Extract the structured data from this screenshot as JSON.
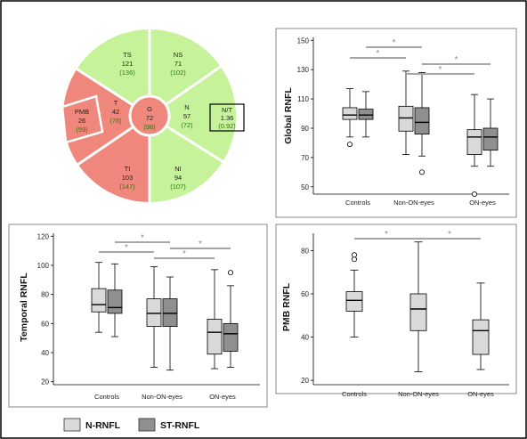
{
  "colors": {
    "n_rnfl": "#d9d9d9",
    "st_rnfl": "#8f8f8f",
    "sector_green": "#c6f29a",
    "sector_red": "#f0877c",
    "significance": "#a6a6a6"
  },
  "legend": [
    {
      "label": "N-RNFL",
      "color": "#d9d9d9"
    },
    {
      "label": "ST-RNFL",
      "color": "#8f8f8f"
    }
  ],
  "sector_diagram": {
    "sectors": [
      {
        "code": "TS",
        "value": "121",
        "ref": "(136)",
        "status": "normal"
      },
      {
        "code": "NS",
        "value": "71",
        "ref": "(102)",
        "status": "normal"
      },
      {
        "code": "T",
        "value": "42",
        "ref": "(76)",
        "status": "abnormal"
      },
      {
        "code": "PMB",
        "value": "26",
        "ref": "(59)",
        "status": "abnormal"
      },
      {
        "code": "G",
        "value": "72",
        "ref": "(98)",
        "status": "abnormal"
      },
      {
        "code": "N",
        "value": "57",
        "ref": "(72)",
        "status": "normal"
      },
      {
        "code": "N/T",
        "value": "1.36",
        "ref": "(0.92)",
        "status": "normal"
      },
      {
        "code": "TI",
        "value": "103",
        "ref": "(147)",
        "status": "abnormal"
      },
      {
        "code": "NI",
        "value": "94",
        "ref": "(107)",
        "status": "normal"
      }
    ]
  },
  "chart_data": [
    {
      "type": "box",
      "title": "",
      "xlabel": "",
      "ylabel": "Global RNFL",
      "ylim": [
        45,
        152
      ],
      "yticks": [
        "50",
        "70",
        "90",
        "110",
        "130",
        "150"
      ],
      "categories": [
        "Controls",
        "Non-ON-eyes",
        "ON-eyes"
      ],
      "series": [
        {
          "name": "N-RNFL",
          "boxes": [
            {
              "min": 84,
              "q1": 96,
              "median": 99,
              "q3": 104,
              "max": 117,
              "outliers": [
                79
              ]
            },
            {
              "min": 72,
              "q1": 88,
              "median": 97,
              "q3": 105,
              "max": 129,
              "outliers": []
            },
            {
              "min": 64,
              "q1": 72,
              "median": 84,
              "q3": 89,
              "max": 113,
              "outliers": [
                45
              ]
            }
          ]
        },
        {
          "name": "ST-RNFL",
          "boxes": [
            {
              "min": 84,
              "q1": 96,
              "median": 99,
              "q3": 103,
              "max": 115,
              "outliers": []
            },
            {
              "min": 71,
              "q1": 86,
              "median": 94,
              "q3": 104,
              "max": 128,
              "outliers": [
                60
              ]
            },
            {
              "min": 64,
              "q1": 75,
              "median": 84,
              "q3": 90,
              "max": 110,
              "outliers": []
            }
          ]
        }
      ],
      "significance": [
        {
          "label": "*",
          "from": 0,
          "to": 1,
          "series": "N-RNFL"
        },
        {
          "label": "*",
          "from": 0,
          "to": 1,
          "series": "ST-RNFL"
        },
        {
          "label": "*",
          "from": 1,
          "to": 2,
          "series": "N-RNFL"
        },
        {
          "label": "*",
          "from": 1,
          "to": 2,
          "series": "ST-RNFL"
        }
      ]
    },
    {
      "type": "box",
      "title": "",
      "xlabel": "",
      "ylabel": "Temporal RNFL",
      "ylim": [
        18,
        122
      ],
      "yticks": [
        "20",
        "40",
        "60",
        "80",
        "100",
        "120"
      ],
      "categories": [
        "Controls",
        "Non-ON-eyes",
        "ON-eyes"
      ],
      "series": [
        {
          "name": "N-RNFL",
          "boxes": [
            {
              "min": 54,
              "q1": 68,
              "median": 73,
              "q3": 84,
              "max": 102,
              "outliers": []
            },
            {
              "min": 30,
              "q1": 58,
              "median": 67,
              "q3": 77,
              "max": 99,
              "outliers": []
            },
            {
              "min": 29,
              "q1": 39,
              "median": 54,
              "q3": 63,
              "max": 97,
              "outliers": []
            }
          ]
        },
        {
          "name": "ST-RNFL",
          "boxes": [
            {
              "min": 51,
              "q1": 67,
              "median": 71,
              "q3": 83,
              "max": 101,
              "outliers": []
            },
            {
              "min": 28,
              "q1": 58,
              "median": 67,
              "q3": 77,
              "max": 92,
              "outliers": []
            },
            {
              "min": 30,
              "q1": 41,
              "median": 53,
              "q3": 60,
              "max": 86,
              "outliers": [
                95
              ]
            }
          ]
        }
      ],
      "significance": [
        {
          "label": "*",
          "from": 0,
          "to": 1,
          "series": "N-RNFL"
        },
        {
          "label": "*",
          "from": 0,
          "to": 1,
          "series": "ST-RNFL"
        },
        {
          "label": "*",
          "from": 1,
          "to": 2,
          "series": "N-RNFL"
        },
        {
          "label": "*",
          "from": 1,
          "to": 2,
          "series": "ST-RNFL"
        }
      ]
    },
    {
      "type": "box",
      "title": "",
      "xlabel": "",
      "ylabel": "PMB RNFL",
      "ylim": [
        18,
        88
      ],
      "yticks": [
        "20",
        "40",
        "60",
        "80"
      ],
      "categories": [
        "Controls",
        "Non-ON-eyes",
        "ON-eyes"
      ],
      "series": [
        {
          "name": "N-RNFL",
          "boxes": [
            {
              "min": 40,
              "q1": 52,
              "median": 57,
              "q3": 61,
              "max": 71,
              "outliers": [
                76,
                78
              ]
            },
            {
              "min": 24,
              "q1": 43,
              "median": 53,
              "q3": 60,
              "max": 84,
              "outliers": []
            },
            {
              "min": 25,
              "q1": 32,
              "median": 43,
              "q3": 48,
              "max": 65,
              "outliers": []
            }
          ]
        }
      ],
      "significance": [
        {
          "label": "*",
          "from": 0,
          "to": 1,
          "series": "N-RNFL"
        },
        {
          "label": "*",
          "from": 1,
          "to": 2,
          "series": "N-RNFL"
        }
      ]
    }
  ]
}
